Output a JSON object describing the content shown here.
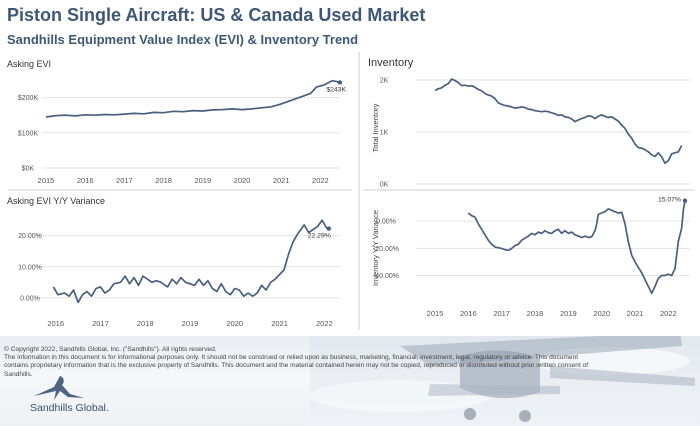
{
  "header": {
    "title": "Piston Single Aircraft:  US & Canada Used Market",
    "subtitle": "Sandhills Equipment Value Index (EVI) & Inventory Trend"
  },
  "colors": {
    "line": "#4a5f80",
    "title": "#3f5777",
    "grid": "#e3e3e3",
    "divider": "#c9ced6"
  },
  "chart_data": [
    {
      "type": "line",
      "title": "Asking EVI",
      "x_ticks": [
        "2015",
        "2016",
        "2017",
        "2018",
        "2019",
        "2020",
        "2021",
        "2022"
      ],
      "y_ticks": [
        "$0K",
        "$100K",
        "$200K"
      ],
      "ylim": [
        0,
        250000
      ],
      "series": [
        {
          "values": [
            [
              2015.0,
              145000
            ],
            [
              2015.25,
              149000
            ],
            [
              2015.5,
              150000
            ],
            [
              2015.75,
              148000
            ],
            [
              2016.0,
              151000
            ],
            [
              2016.25,
              150000
            ],
            [
              2016.5,
              152000
            ],
            [
              2016.75,
              151000
            ],
            [
              2017.0,
              153000
            ],
            [
              2017.25,
              155000
            ],
            [
              2017.5,
              154000
            ],
            [
              2017.75,
              158000
            ],
            [
              2018.0,
              157000
            ],
            [
              2018.25,
              161000
            ],
            [
              2018.5,
              160000
            ],
            [
              2018.75,
              163000
            ],
            [
              2019.0,
              162000
            ],
            [
              2019.25,
              165000
            ],
            [
              2019.5,
              166000
            ],
            [
              2019.75,
              168000
            ],
            [
              2020.0,
              166000
            ],
            [
              2020.25,
              168000
            ],
            [
              2020.5,
              171000
            ],
            [
              2020.75,
              174000
            ],
            [
              2021.0,
              182000
            ],
            [
              2021.25,
              192000
            ],
            [
              2021.5,
              202000
            ],
            [
              2021.75,
              212000
            ],
            [
              2021.9,
              230000
            ],
            [
              2022.1,
              236000
            ],
            [
              2022.3,
              248000
            ],
            [
              2022.4,
              246000
            ],
            [
              2022.5,
              243000
            ]
          ]
        }
      ],
      "end_label": "$243K"
    },
    {
      "type": "line",
      "title": "Asking EVI Y/Y Variance",
      "x_ticks": [
        "2016",
        "2017",
        "2018",
        "2019",
        "2020",
        "2021",
        "2022"
      ],
      "y_ticks": [
        "0.00%",
        "10.00%",
        "20.00%"
      ],
      "ylim": [
        -2,
        27
      ],
      "series": [
        {
          "values": [
            [
              2015.95,
              3.5
            ],
            [
              2016.05,
              1
            ],
            [
              2016.2,
              1.5
            ],
            [
              2016.3,
              0.5
            ],
            [
              2016.4,
              2.5
            ],
            [
              2016.5,
              -1.5
            ],
            [
              2016.6,
              1
            ],
            [
              2016.7,
              2
            ],
            [
              2016.8,
              0.5
            ],
            [
              2016.9,
              3
            ],
            [
              2017.0,
              3.5
            ],
            [
              2017.1,
              1.5
            ],
            [
              2017.2,
              2.5
            ],
            [
              2017.3,
              4.5
            ],
            [
              2017.45,
              5
            ],
            [
              2017.55,
              7
            ],
            [
              2017.65,
              4.5
            ],
            [
              2017.75,
              6.5
            ],
            [
              2017.85,
              4
            ],
            [
              2017.95,
              7
            ],
            [
              2018.05,
              6
            ],
            [
              2018.15,
              5
            ],
            [
              2018.25,
              5.5
            ],
            [
              2018.35,
              5
            ],
            [
              2018.5,
              3.5
            ],
            [
              2018.6,
              6
            ],
            [
              2018.7,
              4.5
            ],
            [
              2018.8,
              6.5
            ],
            [
              2018.9,
              5
            ],
            [
              2019.0,
              4.5
            ],
            [
              2019.1,
              4
            ],
            [
              2019.2,
              6
            ],
            [
              2019.3,
              4
            ],
            [
              2019.4,
              5.5
            ],
            [
              2019.5,
              3
            ],
            [
              2019.6,
              2
            ],
            [
              2019.7,
              4.5
            ],
            [
              2019.8,
              2
            ],
            [
              2019.9,
              1
            ],
            [
              2020.0,
              3
            ],
            [
              2020.1,
              2.5
            ],
            [
              2020.2,
              0.5
            ],
            [
              2020.3,
              1.5
            ],
            [
              2020.4,
              0.5
            ],
            [
              2020.5,
              1.5
            ],
            [
              2020.6,
              4
            ],
            [
              2020.7,
              2.5
            ],
            [
              2020.8,
              5
            ],
            [
              2020.9,
              6
            ],
            [
              2021.0,
              7.5
            ],
            [
              2021.1,
              9
            ],
            [
              2021.2,
              14
            ],
            [
              2021.3,
              18
            ],
            [
              2021.4,
              20.5
            ],
            [
              2021.5,
              22.5
            ],
            [
              2021.55,
              23.5
            ],
            [
              2021.65,
              21
            ],
            [
              2021.75,
              22
            ],
            [
              2021.85,
              23
            ],
            [
              2021.95,
              25
            ],
            [
              2022.05,
              22.5
            ],
            [
              2022.1,
              22.29
            ]
          ]
        }
      ],
      "end_label": "22.29%"
    },
    {
      "type": "line",
      "title": "Total Inventory",
      "x_ticks": [],
      "y_ticks": [
        "0K",
        "1K",
        "2K"
      ],
      "ylim": [
        0,
        2000
      ],
      "series": [
        {
          "values": [
            [
              2015.0,
              1800
            ],
            [
              2015.1,
              1830
            ],
            [
              2015.2,
              1850
            ],
            [
              2015.3,
              1900
            ],
            [
              2015.4,
              1930
            ],
            [
              2015.5,
              2020
            ],
            [
              2015.6,
              1990
            ],
            [
              2015.7,
              1950
            ],
            [
              2015.8,
              1890
            ],
            [
              2015.9,
              1900
            ],
            [
              2016.0,
              1880
            ],
            [
              2016.1,
              1890
            ],
            [
              2016.2,
              1860
            ],
            [
              2016.3,
              1820
            ],
            [
              2016.4,
              1790
            ],
            [
              2016.5,
              1740
            ],
            [
              2016.6,
              1710
            ],
            [
              2016.7,
              1690
            ],
            [
              2016.8,
              1640
            ],
            [
              2016.9,
              1560
            ],
            [
              2017.0,
              1530
            ],
            [
              2017.1,
              1510
            ],
            [
              2017.2,
              1500
            ],
            [
              2017.3,
              1480
            ],
            [
              2017.4,
              1460
            ],
            [
              2017.5,
              1470
            ],
            [
              2017.6,
              1480
            ],
            [
              2017.7,
              1470
            ],
            [
              2017.8,
              1440
            ],
            [
              2017.9,
              1430
            ],
            [
              2018.0,
              1410
            ],
            [
              2018.1,
              1400
            ],
            [
              2018.2,
              1390
            ],
            [
              2018.3,
              1400
            ],
            [
              2018.4,
              1390
            ],
            [
              2018.5,
              1370
            ],
            [
              2018.6,
              1350
            ],
            [
              2018.7,
              1320
            ],
            [
              2018.8,
              1330
            ],
            [
              2018.9,
              1290
            ],
            [
              2019.0,
              1280
            ],
            [
              2019.1,
              1250
            ],
            [
              2019.2,
              1200
            ],
            [
              2019.3,
              1230
            ],
            [
              2019.4,
              1260
            ],
            [
              2019.5,
              1280
            ],
            [
              2019.6,
              1310
            ],
            [
              2019.7,
              1300
            ],
            [
              2019.8,
              1260
            ],
            [
              2019.9,
              1300
            ],
            [
              2020.0,
              1330
            ],
            [
              2020.1,
              1300
            ],
            [
              2020.2,
              1280
            ],
            [
              2020.3,
              1290
            ],
            [
              2020.4,
              1250
            ],
            [
              2020.5,
              1210
            ],
            [
              2020.6,
              1130
            ],
            [
              2020.7,
              1070
            ],
            [
              2020.8,
              960
            ],
            [
              2020.9,
              880
            ],
            [
              2021.0,
              770
            ],
            [
              2021.1,
              700
            ],
            [
              2021.2,
              690
            ],
            [
              2021.3,
              660
            ],
            [
              2021.4,
              620
            ],
            [
              2021.5,
              560
            ],
            [
              2021.6,
              530
            ],
            [
              2021.7,
              600
            ],
            [
              2021.8,
              520
            ],
            [
              2021.9,
              400
            ],
            [
              2022.0,
              450
            ],
            [
              2022.1,
              580
            ],
            [
              2022.2,
              600
            ],
            [
              2022.3,
              620
            ],
            [
              2022.4,
              740
            ]
          ]
        }
      ]
    },
    {
      "type": "line",
      "title": "Inventory Y/Y Variance",
      "x_ticks": [
        "2015",
        "2016",
        "2017",
        "2018",
        "2019",
        "2020",
        "2021",
        "2022"
      ],
      "y_ticks": [
        "0.00%",
        "-20.00%",
        "-40.00%"
      ],
      "ylim": [
        -58,
        20
      ],
      "series": [
        {
          "values": [
            [
              2016.0,
              6
            ],
            [
              2016.1,
              4
            ],
            [
              2016.2,
              3
            ],
            [
              2016.3,
              -2
            ],
            [
              2016.4,
              -6
            ],
            [
              2016.5,
              -10
            ],
            [
              2016.6,
              -14
            ],
            [
              2016.7,
              -17
            ],
            [
              2016.8,
              -19
            ],
            [
              2016.9,
              -19.5
            ],
            [
              2017.0,
              -20
            ],
            [
              2017.1,
              -21
            ],
            [
              2017.2,
              -21.5
            ],
            [
              2017.3,
              -20
            ],
            [
              2017.4,
              -18
            ],
            [
              2017.5,
              -17
            ],
            [
              2017.6,
              -14
            ],
            [
              2017.7,
              -12.5
            ],
            [
              2017.8,
              -11
            ],
            [
              2017.9,
              -9
            ],
            [
              2018.0,
              -10
            ],
            [
              2018.1,
              -8
            ],
            [
              2018.2,
              -9
            ],
            [
              2018.3,
              -7
            ],
            [
              2018.4,
              -8.5
            ],
            [
              2018.5,
              -9
            ],
            [
              2018.6,
              -7
            ],
            [
              2018.7,
              -6
            ],
            [
              2018.8,
              -9
            ],
            [
              2018.9,
              -7
            ],
            [
              2019.0,
              -9
            ],
            [
              2019.1,
              -8
            ],
            [
              2019.2,
              -10
            ],
            [
              2019.3,
              -11
            ],
            [
              2019.4,
              -12
            ],
            [
              2019.5,
              -11
            ],
            [
              2019.6,
              -12
            ],
            [
              2019.7,
              -11.5
            ],
            [
              2019.8,
              -7
            ],
            [
              2019.85,
              -2
            ],
            [
              2019.9,
              5
            ],
            [
              2020.0,
              6
            ],
            [
              2020.1,
              7
            ],
            [
              2020.2,
              9
            ],
            [
              2020.3,
              8
            ],
            [
              2020.4,
              7
            ],
            [
              2020.5,
              6
            ],
            [
              2020.6,
              6.5
            ],
            [
              2020.7,
              -2
            ],
            [
              2020.8,
              -15
            ],
            [
              2020.9,
              -25
            ],
            [
              2021.0,
              -30
            ],
            [
              2021.1,
              -34
            ],
            [
              2021.2,
              -38
            ],
            [
              2021.3,
              -43
            ],
            [
              2021.4,
              -48
            ],
            [
              2021.5,
              -53
            ],
            [
              2021.6,
              -48
            ],
            [
              2021.7,
              -42
            ],
            [
              2021.8,
              -40
            ],
            [
              2021.9,
              -40
            ],
            [
              2022.0,
              -39
            ],
            [
              2022.1,
              -40
            ],
            [
              2022.2,
              -35
            ],
            [
              2022.3,
              -15
            ],
            [
              2022.4,
              -5
            ],
            [
              2022.45,
              8
            ],
            [
              2022.5,
              15.07
            ]
          ]
        }
      ],
      "end_label": "15.07%"
    }
  ],
  "panels": {
    "inventory_heading": "Inventory",
    "inventory_y_title": "Total Inventory",
    "inventory_var_y_title": "Inventory Y/Y Variance"
  },
  "footer": {
    "copyright": "© Copyright 2022, Sandhills Global, Inc. (\"Sandhills\"). All rights reserved.",
    "disclaimer": "The information in this document is for informational purposes only.  It should not be construed or relied upon as business, marketing, financial, investment, legal, regulatory or advice. This document contains proprietary information that is the exclusive property of Sandhills. This document and the material contained herein may not be copied, reproduced or distributed without prior written consent of Sandhills.",
    "brand": "Sandhills Global."
  }
}
